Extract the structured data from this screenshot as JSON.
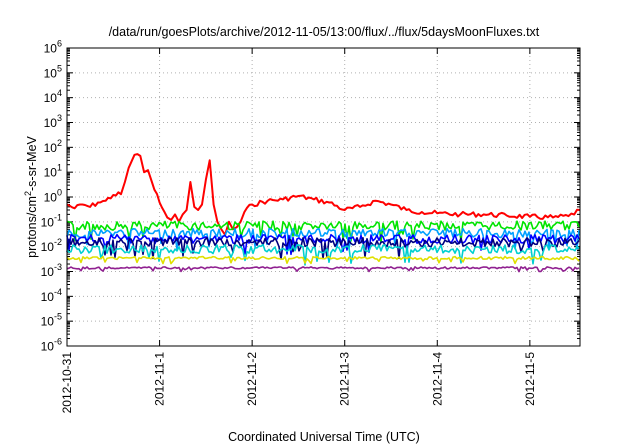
{
  "chart_data": {
    "type": "line",
    "title": "/data/run/goesPlots/archive/2012-11-05/13:00/flux/../flux/5daysMoonFluxes.txt",
    "xlabel": "Coordinated Universal Time (UTC)",
    "ylabel_base": "protons/cm",
    "ylabel_sup": "2",
    "ylabel_rest": "-s-sr-MeV",
    "y_scale": "log",
    "ylim": [
      1e-06,
      1000000.0
    ],
    "xlim": [
      "2012-10-31T00:00",
      "2012-11-05T13:00"
    ],
    "grid": true,
    "legend": "none",
    "x_ticks": [
      "2012-10-31",
      "2012-11-1",
      "2012-11-2",
      "2012-11-3",
      "2012-11-4",
      "2012-11-5"
    ],
    "y_ticks": [
      {
        "base": "10",
        "exp": "6"
      },
      {
        "base": "10",
        "exp": "5"
      },
      {
        "base": "10",
        "exp": "4"
      },
      {
        "base": "10",
        "exp": "3"
      },
      {
        "base": "10",
        "exp": "2"
      },
      {
        "base": "10",
        "exp": "1"
      },
      {
        "base": "10",
        "exp": "0"
      },
      {
        "base": "10",
        "exp": "-1"
      },
      {
        "base": "10",
        "exp": "-2"
      },
      {
        "base": "10",
        "exp": "-3"
      },
      {
        "base": "10",
        "exp": "-4"
      },
      {
        "base": "10",
        "exp": "-5"
      },
      {
        "base": "10",
        "exp": "-6"
      }
    ],
    "series": [
      {
        "color": "#ff0000",
        "x": [
          "2012-10-31T00:00",
          "2012-10-31T02:00",
          "2012-10-31T04:00",
          "2012-10-31T06:00",
          "2012-10-31T08:00",
          "2012-10-31T10:00",
          "2012-10-31T12:00",
          "2012-10-31T14:00",
          "2012-10-31T15:00",
          "2012-10-31T16:00",
          "2012-10-31T17:30",
          "2012-10-31T19:00",
          "2012-10-31T20:00",
          "2012-10-31T21:00",
          "2012-10-31T22:00",
          "2012-11-01T00:00",
          "2012-11-01T02:00",
          "2012-11-01T03:00",
          "2012-11-01T04:00",
          "2012-11-01T05:00",
          "2012-11-01T06:00",
          "2012-11-01T07:00",
          "2012-11-01T08:00",
          "2012-11-01T09:00",
          "2012-11-01T10:00",
          "2012-11-01T11:00",
          "2012-11-01T12:00",
          "2012-11-01T13:00",
          "2012-11-01T14:00",
          "2012-11-01T15:00",
          "2012-11-01T16:00",
          "2012-11-01T17:00",
          "2012-11-01T18:00",
          "2012-11-01T19:00",
          "2012-11-01T20:00",
          "2012-11-01T21:00",
          "2012-11-01T22:00",
          "2012-11-02T00:00",
          "2012-11-02T04:00",
          "2012-11-02T08:00",
          "2012-11-02T12:00",
          "2012-11-02T16:00",
          "2012-11-02T20:00",
          "2012-11-03T00:00",
          "2012-11-03T04:00",
          "2012-11-03T08:00",
          "2012-11-03T12:00",
          "2012-11-03T16:00",
          "2012-11-03T20:00",
          "2012-11-04T00:00",
          "2012-11-04T06:00",
          "2012-11-04T12:00",
          "2012-11-04T18:00",
          "2012-11-05T00:00",
          "2012-11-05T06:00",
          "2012-11-05T10:00",
          "2012-11-05T13:00"
        ],
        "y": [
          0.5,
          0.35,
          0.5,
          0.4,
          0.6,
          0.7,
          1.2,
          1.3,
          4,
          15,
          50,
          45,
          10,
          12,
          4,
          0.6,
          0.15,
          0.12,
          0.2,
          0.1,
          0.2,
          0.3,
          4,
          0.4,
          0.3,
          0.5,
          5,
          30,
          0.5,
          0.1,
          0.05,
          0.03,
          0.1,
          0.05,
          0.06,
          0.1,
          0.25,
          0.5,
          0.7,
          0.8,
          1.1,
          0.8,
          0.6,
          0.3,
          0.4,
          0.7,
          0.5,
          0.3,
          0.25,
          0.22,
          0.2,
          0.2,
          0.18,
          0.16,
          0.15,
          0.17,
          0.3
        ]
      },
      {
        "color": "#00e400",
        "x": [
          "2012-10-31T00:00",
          "2012-11-01T00:00",
          "2012-11-02T00:00",
          "2012-11-03T00:00",
          "2012-11-04T00:00",
          "2012-11-05T00:00",
          "2012-11-05T13:00"
        ],
        "y": [
          0.07,
          0.07,
          0.07,
          0.07,
          0.07,
          0.07,
          0.07
        ]
      },
      {
        "color": "#00a0ff",
        "x": [
          "2012-10-31T00:00",
          "2012-11-01T00:00",
          "2012-11-02T00:00",
          "2012-11-03T00:00",
          "2012-11-04T00:00",
          "2012-11-05T00:00",
          "2012-11-05T13:00"
        ],
        "y": [
          0.035,
          0.035,
          0.035,
          0.035,
          0.035,
          0.035,
          0.035
        ]
      },
      {
        "color": "#0000ff",
        "x": [
          "2012-10-31T00:00",
          "2012-11-01T00:00",
          "2012-11-02T00:00",
          "2012-11-03T00:00",
          "2012-11-04T00:00",
          "2012-11-05T00:00",
          "2012-11-05T13:00"
        ],
        "y": [
          0.02,
          0.02,
          0.02,
          0.02,
          0.02,
          0.02,
          0.02
        ]
      },
      {
        "color": "#000080",
        "x": [
          "2012-10-31T00:00",
          "2012-11-01T00:00",
          "2012-11-02T00:00",
          "2012-11-03T00:00",
          "2012-11-04T00:00",
          "2012-11-05T00:00",
          "2012-11-05T13:00"
        ],
        "y": [
          0.015,
          0.015,
          0.015,
          0.015,
          0.015,
          0.015,
          0.015
        ]
      },
      {
        "color": "#00d0d0",
        "x": [
          "2012-10-31T00:00",
          "2012-11-01T00:00",
          "2012-11-02T00:00",
          "2012-11-03T00:00",
          "2012-11-04T00:00",
          "2012-11-05T00:00",
          "2012-11-05T13:00"
        ],
        "y": [
          0.008,
          0.008,
          0.008,
          0.008,
          0.008,
          0.008,
          0.008
        ]
      },
      {
        "color": "#e0e000",
        "x": [
          "2012-10-31T00:00",
          "2012-11-01T00:00",
          "2012-11-02T00:00",
          "2012-11-03T00:00",
          "2012-11-04T00:00",
          "2012-11-05T00:00",
          "2012-11-05T13:00"
        ],
        "y": [
          0.0035,
          0.0035,
          0.0035,
          0.0035,
          0.0035,
          0.0035,
          0.0035
        ]
      },
      {
        "color": "#902090",
        "x": [
          "2012-10-31T00:00",
          "2012-11-01T00:00",
          "2012-11-02T00:00",
          "2012-11-03T00:00",
          "2012-11-04T00:00",
          "2012-11-05T00:00",
          "2012-11-05T13:00"
        ],
        "y": [
          0.0014,
          0.0014,
          0.0014,
          0.0014,
          0.0014,
          0.0014,
          0.0014
        ]
      }
    ]
  }
}
